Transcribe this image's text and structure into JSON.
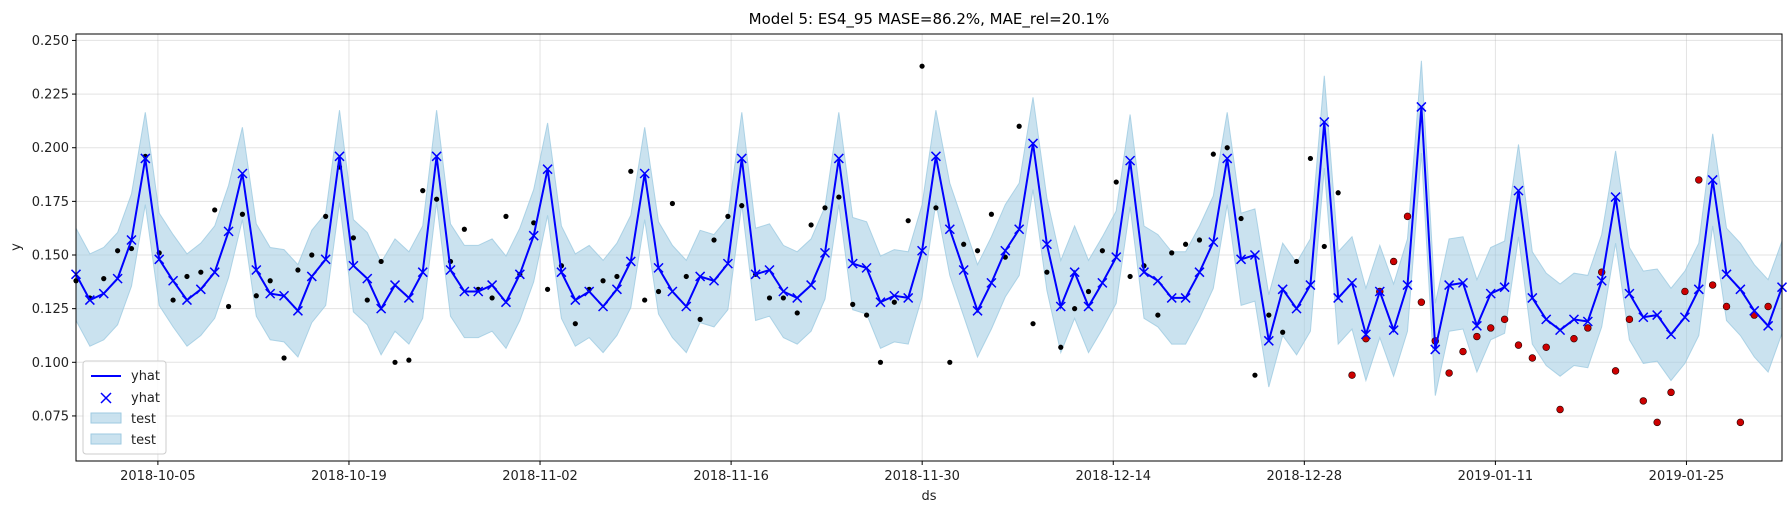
{
  "chart_data": {
    "type": "line",
    "title": "Model 5: ES4_95 MASE=86.2%, MAE_rel=20.1%",
    "xlabel": "ds",
    "ylabel": "y",
    "x_start": "2018-09-29",
    "x_end": "2019-02-01",
    "ylim": [
      0.054,
      0.253
    ],
    "grid": true,
    "legend_placement": "lower-left",
    "x_ticks": [
      "2018-10-05",
      "2018-10-19",
      "2018-11-02",
      "2018-11-16",
      "2018-11-30",
      "2018-12-14",
      "2018-12-28",
      "2019-01-11",
      "2019-01-25"
    ],
    "y_ticks": [
      0.075,
      0.1,
      0.125,
      0.15,
      0.175,
      0.2,
      0.225,
      0.25
    ],
    "y_tick_labels": [
      "0.075",
      "0.100",
      "0.125",
      "0.150",
      "0.175",
      "0.200",
      "0.225",
      "0.250"
    ],
    "legend": [
      {
        "label": "yhat",
        "kind": "line"
      },
      {
        "label": "yhat",
        "kind": "marker"
      },
      {
        "label": "test",
        "kind": "band"
      },
      {
        "label": "test",
        "kind": "band"
      }
    ],
    "colors": {
      "yhat": "#0000ff",
      "band": "#9ecae1",
      "actual": "#000000",
      "test": "#cc0000"
    },
    "yhat": [
      0.141,
      0.129,
      0.132,
      0.139,
      0.157,
      0.195,
      0.148,
      0.138,
      0.129,
      0.134,
      0.142,
      0.161,
      0.188,
      0.143,
      0.132,
      0.131,
      0.124,
      0.14,
      0.148,
      0.196,
      0.145,
      0.139,
      0.125,
      0.136,
      0.13,
      0.142,
      0.196,
      0.143,
      0.133,
      0.133,
      0.136,
      0.128,
      0.141,
      0.159,
      0.19,
      0.142,
      0.129,
      0.133,
      0.126,
      0.134,
      0.147,
      0.188,
      0.144,
      0.133,
      0.126,
      0.14,
      0.138,
      0.146,
      0.195,
      0.141,
      0.143,
      0.133,
      0.13,
      0.136,
      0.151,
      0.195,
      0.146,
      0.144,
      0.128,
      0.131,
      0.13,
      0.152,
      0.196,
      0.162,
      0.143,
      0.124,
      0.137,
      0.152,
      0.162,
      0.202,
      0.155,
      0.126,
      0.142,
      0.126,
      0.137,
      0.149,
      0.194,
      0.142,
      0.138,
      0.13,
      0.13,
      0.142,
      0.156,
      0.195,
      0.148,
      0.15,
      0.11,
      0.134,
      0.125,
      0.136,
      0.212,
      0.13,
      0.137,
      0.113,
      0.133,
      0.115,
      0.136,
      0.219,
      0.106,
      0.136,
      0.137,
      0.117,
      0.132,
      0.135,
      0.18,
      0.13,
      0.12,
      0.115,
      0.12,
      0.119,
      0.138,
      0.177,
      0.132,
      0.121,
      0.122,
      0.113,
      0.121,
      0.134,
      0.185,
      0.141,
      0.134,
      0.124,
      0.117,
      0.135
    ],
    "band_half_width": 0.0215,
    "actual": [
      [
        0,
        0.138
      ],
      [
        1,
        0.13
      ],
      [
        2,
        0.139
      ],
      [
        3,
        0.152
      ],
      [
        4,
        0.153
      ],
      [
        5,
        0.196
      ],
      [
        6,
        0.151
      ],
      [
        7,
        0.129
      ],
      [
        8,
        0.14
      ],
      [
        9,
        0.142
      ],
      [
        10,
        0.171
      ],
      [
        11,
        0.126
      ],
      [
        12,
        0.169
      ],
      [
        13,
        0.131
      ],
      [
        14,
        0.138
      ],
      [
        15,
        0.102
      ],
      [
        16,
        0.143
      ],
      [
        17,
        0.15
      ],
      [
        18,
        0.168
      ],
      [
        19,
        0.191
      ],
      [
        20,
        0.158
      ],
      [
        21,
        0.129
      ],
      [
        22,
        0.147
      ],
      [
        23,
        0.1
      ],
      [
        24,
        0.101
      ],
      [
        25,
        0.18
      ],
      [
        26,
        0.176
      ],
      [
        27,
        0.147
      ],
      [
        28,
        0.162
      ],
      [
        29,
        0.134
      ],
      [
        30,
        0.13
      ],
      [
        31,
        0.168
      ],
      [
        32,
        0.141
      ],
      [
        33,
        0.165
      ],
      [
        34,
        0.134
      ],
      [
        35,
        0.145
      ],
      [
        36,
        0.118
      ],
      [
        37,
        0.134
      ],
      [
        38,
        0.138
      ],
      [
        39,
        0.14
      ],
      [
        40,
        0.189
      ],
      [
        41,
        0.129
      ],
      [
        42,
        0.133
      ],
      [
        43,
        0.174
      ],
      [
        44,
        0.14
      ],
      [
        45,
        0.12
      ],
      [
        46,
        0.157
      ],
      [
        47,
        0.168
      ],
      [
        48,
        0.173
      ],
      [
        49,
        0.141
      ],
      [
        50,
        0.13
      ],
      [
        51,
        0.13
      ],
      [
        52,
        0.123
      ],
      [
        53,
        0.164
      ],
      [
        54,
        0.172
      ],
      [
        55,
        0.177
      ],
      [
        56,
        0.127
      ],
      [
        57,
        0.122
      ],
      [
        58,
        0.1
      ],
      [
        59,
        0.128
      ],
      [
        60,
        0.166
      ],
      [
        61,
        0.238
      ],
      [
        62,
        0.172
      ],
      [
        63,
        0.1
      ],
      [
        64,
        0.155
      ],
      [
        65,
        0.152
      ],
      [
        66,
        0.169
      ],
      [
        67,
        0.149
      ],
      [
        68,
        0.21
      ],
      [
        69,
        0.118
      ],
      [
        70,
        0.142
      ],
      [
        71,
        0.107
      ],
      [
        72,
        0.125
      ],
      [
        73,
        0.133
      ],
      [
        74,
        0.152
      ],
      [
        75,
        0.184
      ],
      [
        76,
        0.14
      ],
      [
        77,
        0.145
      ],
      [
        78,
        0.122
      ],
      [
        79,
        0.151
      ],
      [
        80,
        0.155
      ],
      [
        81,
        0.157
      ],
      [
        82,
        0.197
      ],
      [
        83,
        0.2
      ],
      [
        84,
        0.167
      ],
      [
        85,
        0.094
      ],
      [
        86,
        0.122
      ],
      [
        87,
        0.114
      ],
      [
        88,
        0.147
      ],
      [
        89,
        0.195
      ],
      [
        90,
        0.154
      ],
      [
        91,
        0.179
      ]
    ],
    "test": [
      [
        92,
        0.094
      ],
      [
        93,
        0.111
      ],
      [
        94,
        0.133
      ],
      [
        95,
        0.147
      ],
      [
        96,
        0.168
      ],
      [
        97,
        0.128
      ],
      [
        98,
        0.11
      ],
      [
        99,
        0.095
      ],
      [
        100,
        0.105
      ],
      [
        101,
        0.112
      ],
      [
        102,
        0.116
      ],
      [
        103,
        0.12
      ],
      [
        104,
        0.108
      ],
      [
        105,
        0.102
      ],
      [
        106,
        0.107
      ],
      [
        107,
        0.078
      ],
      [
        108,
        0.111
      ],
      [
        109,
        0.116
      ],
      [
        110,
        0.142
      ],
      [
        111,
        0.096
      ],
      [
        112,
        0.12
      ],
      [
        113,
        0.082
      ],
      [
        114,
        0.072
      ],
      [
        115,
        0.086
      ],
      [
        116,
        0.133
      ],
      [
        117,
        0.185
      ],
      [
        118,
        0.136
      ],
      [
        119,
        0.126
      ],
      [
        120,
        0.072
      ],
      [
        121,
        0.122
      ],
      [
        122,
        0.126
      ]
    ]
  }
}
